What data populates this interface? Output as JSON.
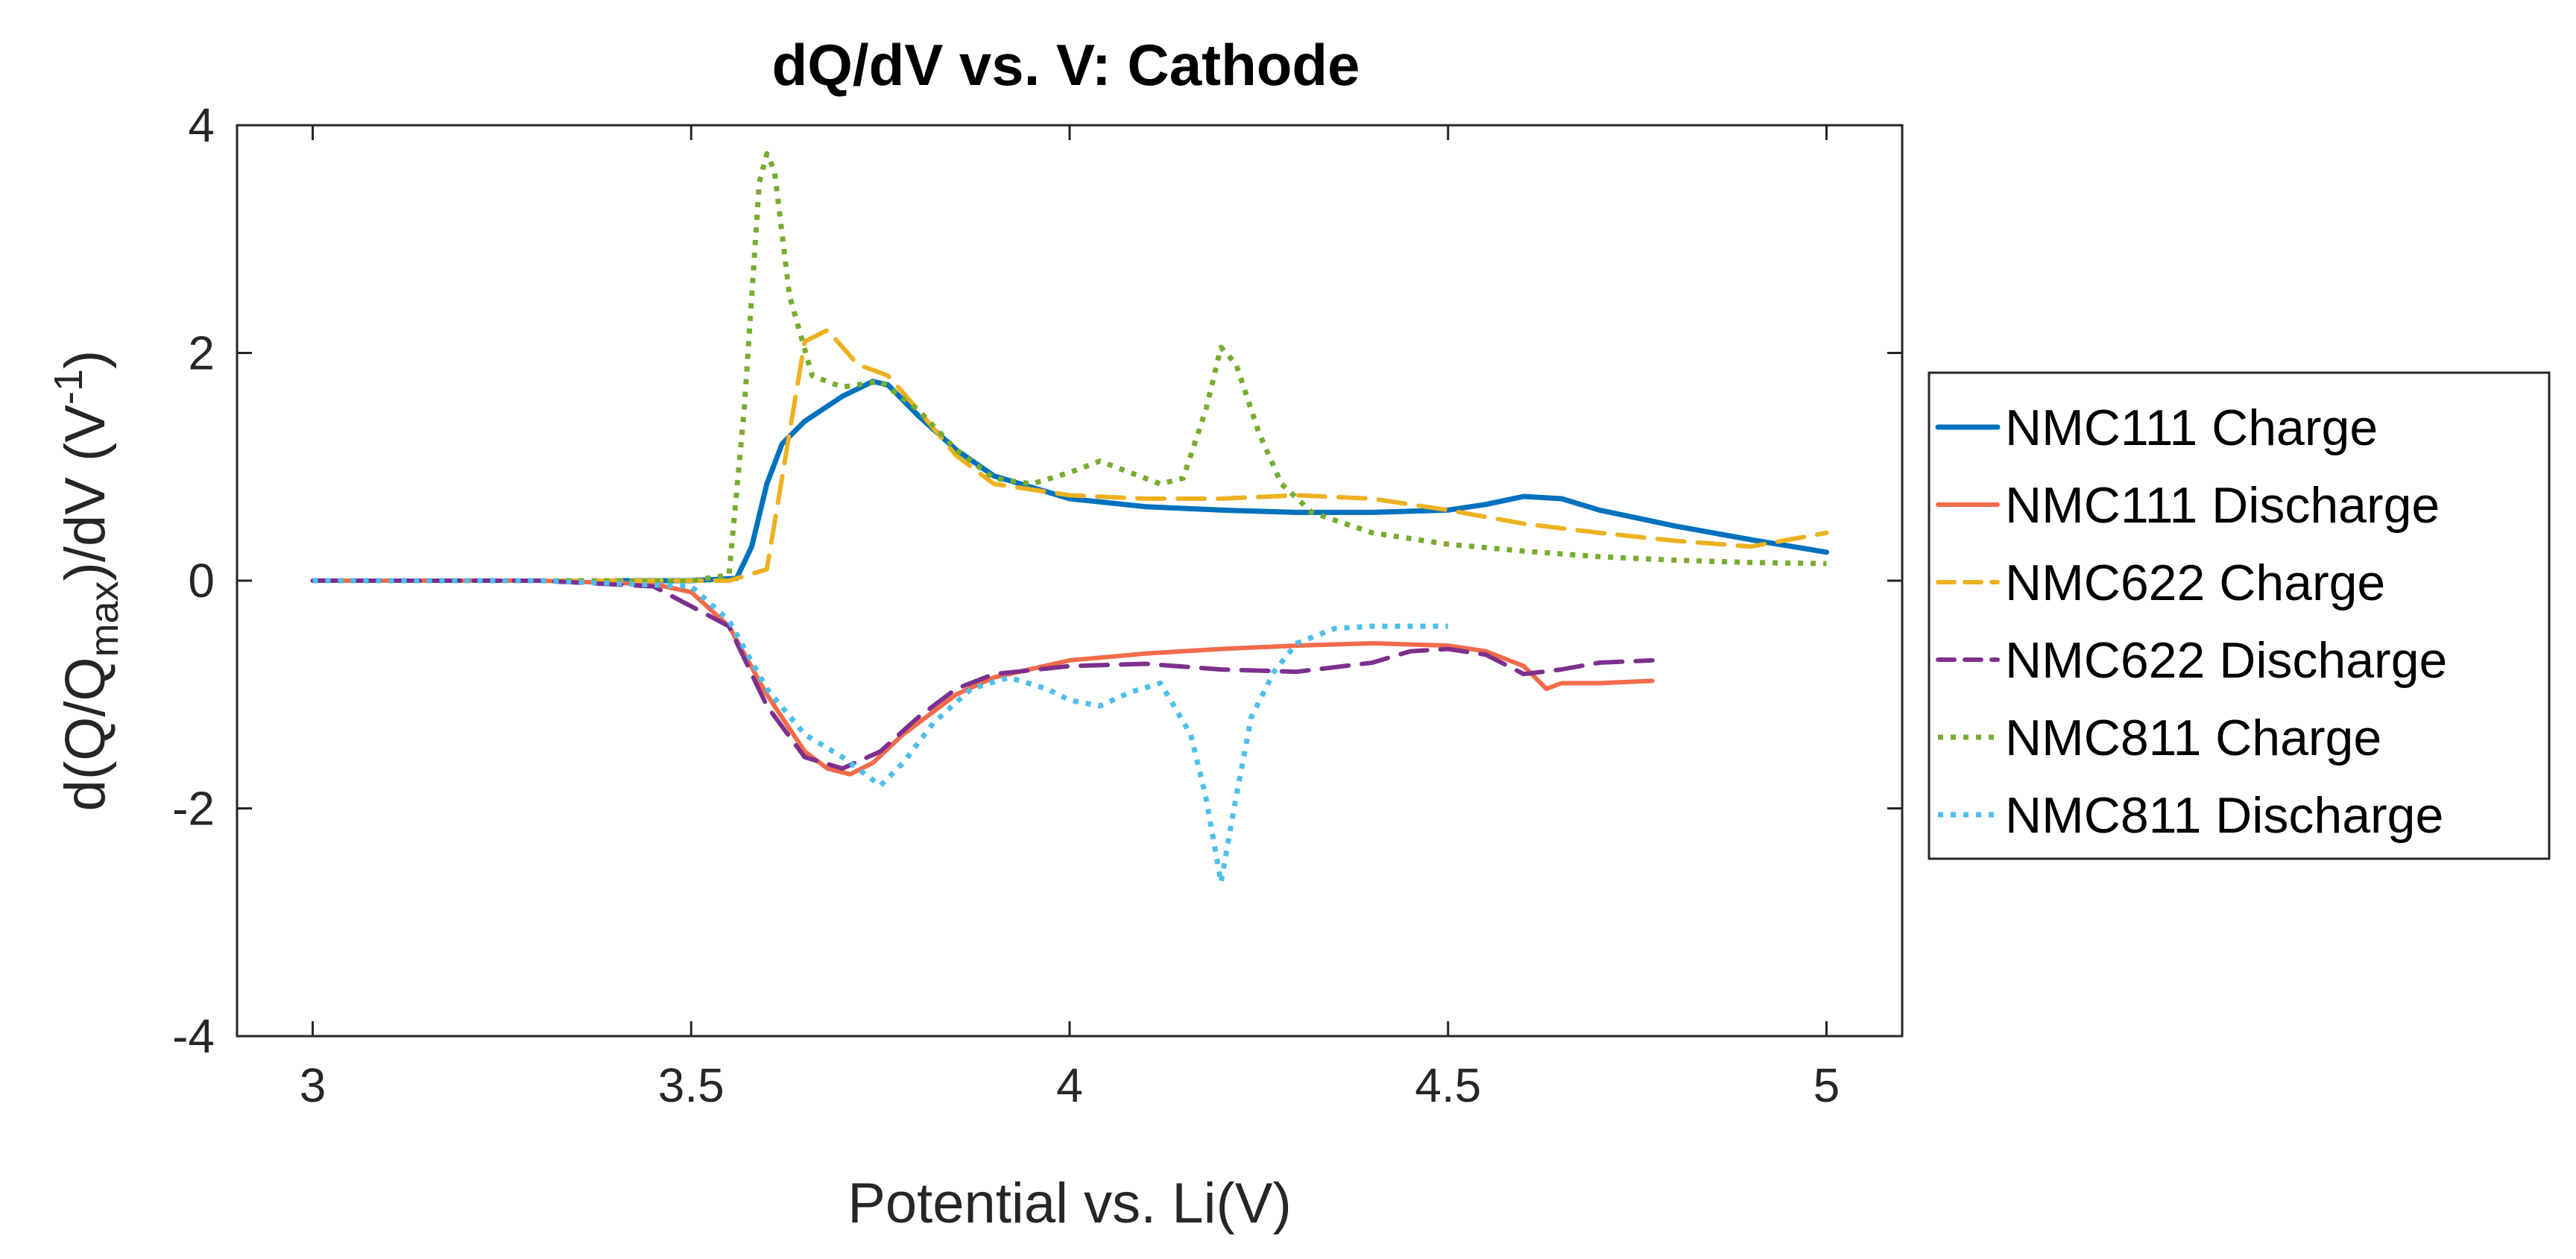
{
  "chart_data": {
    "type": "line",
    "title": "dQ/dV vs. V: Cathode",
    "xlabel": "Potential vs. Li(V)",
    "ylabel": {
      "prefix": "d(Q/Q",
      "subscript": "max",
      "middle": ")/dV (V",
      "superscript": "-1",
      "suffix": ")"
    },
    "xlim": [
      2.9,
      5.1
    ],
    "ylim": [
      -4,
      4
    ],
    "xticks": [
      {
        "value": 3,
        "label": "3"
      },
      {
        "value": 3.5,
        "label": "3.5"
      },
      {
        "value": 4,
        "label": "4"
      },
      {
        "value": 4.5,
        "label": "4.5"
      },
      {
        "value": 5,
        "label": "5"
      }
    ],
    "yticks": [
      {
        "value": 4,
        "label": "4"
      },
      {
        "value": 2,
        "label": "2"
      },
      {
        "value": 0,
        "label": "0"
      },
      {
        "value": -2,
        "label": "-2"
      },
      {
        "value": -4,
        "label": "-4"
      }
    ],
    "grid": false,
    "legend_position": "right",
    "series": [
      {
        "name": "NMC111 Charge",
        "color": "#0072BD",
        "style": "solid",
        "width": 7,
        "x": [
          3.4,
          3.5,
          3.56,
          3.58,
          3.6,
          3.62,
          3.65,
          3.7,
          3.74,
          3.76,
          3.8,
          3.85,
          3.9,
          4.0,
          4.1,
          4.2,
          4.3,
          4.4,
          4.5,
          4.55,
          4.6,
          4.65,
          4.7,
          4.8,
          4.9,
          5.0
        ],
        "y": [
          0.0,
          0.0,
          0.02,
          0.3,
          0.85,
          1.2,
          1.4,
          1.62,
          1.75,
          1.72,
          1.45,
          1.15,
          0.92,
          0.72,
          0.65,
          0.62,
          0.6,
          0.6,
          0.62,
          0.67,
          0.74,
          0.72,
          0.62,
          0.48,
          0.36,
          0.25
        ]
      },
      {
        "name": "NMC111 Discharge",
        "color": "#F26B4A",
        "style": "solid",
        "width": 6,
        "x": [
          3.0,
          3.3,
          3.45,
          3.5,
          3.55,
          3.6,
          3.65,
          3.68,
          3.71,
          3.74,
          3.78,
          3.85,
          3.9,
          4.0,
          4.1,
          4.2,
          4.3,
          4.4,
          4.5,
          4.55,
          4.6,
          4.63,
          4.65,
          4.7,
          4.77
        ],
        "y": [
          0.0,
          0.0,
          -0.03,
          -0.1,
          -0.4,
          -1.0,
          -1.5,
          -1.65,
          -1.7,
          -1.6,
          -1.35,
          -1.0,
          -0.85,
          -0.7,
          -0.64,
          -0.6,
          -0.57,
          -0.55,
          -0.57,
          -0.62,
          -0.75,
          -0.95,
          -0.9,
          -0.9,
          -0.88
        ]
      },
      {
        "name": "NMC622 Charge",
        "color": "#EDB120",
        "style": "dashed",
        "width": 6,
        "x": [
          3.0,
          3.3,
          3.55,
          3.6,
          3.63,
          3.65,
          3.68,
          3.72,
          3.76,
          3.8,
          3.85,
          3.9,
          4.0,
          4.1,
          4.2,
          4.3,
          4.4,
          4.5,
          4.6,
          4.7,
          4.8,
          4.9,
          5.0
        ],
        "y": [
          0.0,
          0.0,
          0.0,
          0.1,
          1.3,
          2.1,
          2.2,
          1.9,
          1.8,
          1.5,
          1.1,
          0.85,
          0.75,
          0.72,
          0.72,
          0.75,
          0.72,
          0.62,
          0.5,
          0.42,
          0.35,
          0.3,
          0.42
        ]
      },
      {
        "name": "NMC622 Discharge",
        "color": "#7E2F8E",
        "style": "dashed",
        "width": 6,
        "x": [
          3.0,
          3.3,
          3.45,
          3.55,
          3.6,
          3.65,
          3.7,
          3.75,
          3.8,
          3.85,
          3.9,
          4.0,
          4.1,
          4.2,
          4.3,
          4.4,
          4.45,
          4.5,
          4.55,
          4.6,
          4.65,
          4.7,
          4.77
        ],
        "y": [
          0.0,
          0.0,
          -0.05,
          -0.4,
          -1.1,
          -1.55,
          -1.65,
          -1.5,
          -1.2,
          -0.95,
          -0.82,
          -0.75,
          -0.73,
          -0.78,
          -0.8,
          -0.72,
          -0.62,
          -0.6,
          -0.65,
          -0.82,
          -0.78,
          -0.72,
          -0.7
        ]
      },
      {
        "name": "NMC811 Charge",
        "color": "#77AC30",
        "style": "dotted",
        "width": 7,
        "x": [
          3.0,
          3.3,
          3.5,
          3.55,
          3.57,
          3.59,
          3.6,
          3.61,
          3.63,
          3.66,
          3.7,
          3.75,
          3.8,
          3.85,
          3.9,
          3.95,
          4.0,
          4.04,
          4.08,
          4.12,
          4.15,
          4.18,
          4.2,
          4.22,
          4.25,
          4.28,
          4.32,
          4.4,
          4.5,
          4.6,
          4.7,
          4.8,
          4.9,
          5.0
        ],
        "y": [
          0.0,
          0.0,
          0.0,
          0.05,
          1.5,
          3.5,
          3.75,
          3.6,
          2.5,
          1.8,
          1.7,
          1.75,
          1.5,
          1.15,
          0.9,
          0.85,
          0.95,
          1.05,
          0.95,
          0.85,
          0.9,
          1.5,
          2.05,
          1.9,
          1.3,
          0.85,
          0.6,
          0.42,
          0.32,
          0.26,
          0.21,
          0.18,
          0.16,
          0.15
        ]
      },
      {
        "name": "NMC811 Discharge",
        "color": "#4DBEEE",
        "style": "dotted",
        "width": 7,
        "x": [
          3.0,
          3.3,
          3.5,
          3.55,
          3.6,
          3.65,
          3.7,
          3.75,
          3.78,
          3.82,
          3.87,
          3.92,
          3.97,
          4.0,
          4.04,
          4.08,
          4.12,
          4.16,
          4.18,
          4.2,
          4.22,
          4.24,
          4.27,
          4.3,
          4.35,
          4.4,
          4.45,
          4.5
        ],
        "y": [
          0.0,
          0.0,
          -0.05,
          -0.35,
          -0.95,
          -1.35,
          -1.55,
          -1.8,
          -1.6,
          -1.25,
          -0.95,
          -0.85,
          -0.95,
          -1.05,
          -1.1,
          -0.98,
          -0.9,
          -1.35,
          -1.9,
          -2.65,
          -1.9,
          -1.2,
          -0.8,
          -0.55,
          -0.42,
          -0.4,
          -0.4,
          -0.4
        ]
      }
    ]
  }
}
